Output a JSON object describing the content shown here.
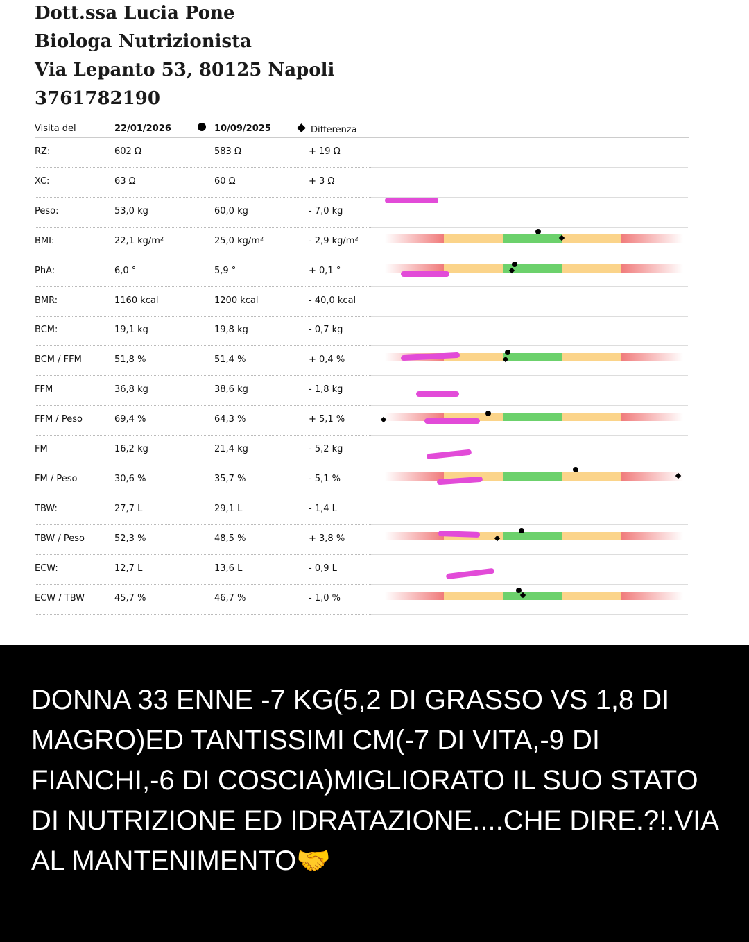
{
  "header": {
    "name": "Dott.ssa Lucia Pone",
    "role": "Biologa Nutrizionista",
    "address": "Via Lepanto 53, 80125 Napoli",
    "phone": "3761782190"
  },
  "table": {
    "col_label": "Visita del",
    "col_date1": "22/01/2026",
    "col_date2": "10/09/2025",
    "col_diff": "Differenza",
    "rows": [
      {
        "label": "RZ:",
        "v1": "602 Ω",
        "v2": "583 Ω",
        "diff": "+ 19 Ω"
      },
      {
        "label": "XC:",
        "v1": "63 Ω",
        "v2": "60 Ω",
        "diff": "+ 3 Ω"
      },
      {
        "label": "Peso:",
        "v1": "53,0 kg",
        "v2": "60,0 kg",
        "diff": "- 7,0 kg"
      },
      {
        "label": "BMI:",
        "v1": "22,1 kg/m²",
        "v2": "25,0 kg/m²",
        "diff": "- 2,9 kg/m²"
      },
      {
        "label": "PhA:",
        "v1": "6,0 °",
        "v2": "5,9 °",
        "diff": "+ 0,1 °"
      },
      {
        "label": "BMR:",
        "v1": "1160 kcal",
        "v2": "1200 kcal",
        "diff": "- 40,0 kcal"
      },
      {
        "label": "BCM:",
        "v1": "19,1 kg",
        "v2": "19,8 kg",
        "diff": "- 0,7 kg"
      },
      {
        "label": "BCM / FFM",
        "v1": "51,8 %",
        "v2": "51,4 %",
        "diff": "+ 0,4 %"
      },
      {
        "label": "FFM",
        "v1": "36,8 kg",
        "v2": "38,6 kg",
        "diff": "- 1,8 kg"
      },
      {
        "label": "FFM / Peso",
        "v1": "69,4 %",
        "v2": "64,3 %",
        "diff": "+ 5,1 %"
      },
      {
        "label": "FM",
        "v1": "16,2 kg",
        "v2": "21,4 kg",
        "diff": "- 5,2 kg"
      },
      {
        "label": "FM / Peso",
        "v1": "30,6 %",
        "v2": "35,7 %",
        "diff": "- 5,1 %"
      },
      {
        "label": "TBW:",
        "v1": "27,7 L",
        "v2": "29,1 L",
        "diff": "- 1,4 L"
      },
      {
        "label": "TBW / Peso",
        "v1": "52,3 %",
        "v2": "48,5 %",
        "diff": "+ 3,8 %"
      },
      {
        "label": "ECW:",
        "v1": "12,7 L",
        "v2": "13,6 L",
        "diff": "- 0,9 L"
      },
      {
        "label": "ECW / TBW",
        "v1": "45,7 %",
        "v2": "46,7 %",
        "diff": "- 1,0 %"
      }
    ]
  },
  "colors": {
    "red": "#f07a7a",
    "yellow": "#fbd48a",
    "green": "#6cd16c",
    "highlighter": "#e24bd8"
  },
  "caption": {
    "text": "DONNA 33 ENNE -7 KG(5,2 DI GRASSO VS 1,8 DI MAGRO)ED TANTISSIMI CM(-7 DI VITA,-9 DI FIANCHI,-6 DI COSCIA)MIGLIORATO IL SUO STATO DI NUTRIZIONE ED IDRATAZIONE....CHE DIRE.?!.VIA AL MANTENIMENTO🤝"
  }
}
